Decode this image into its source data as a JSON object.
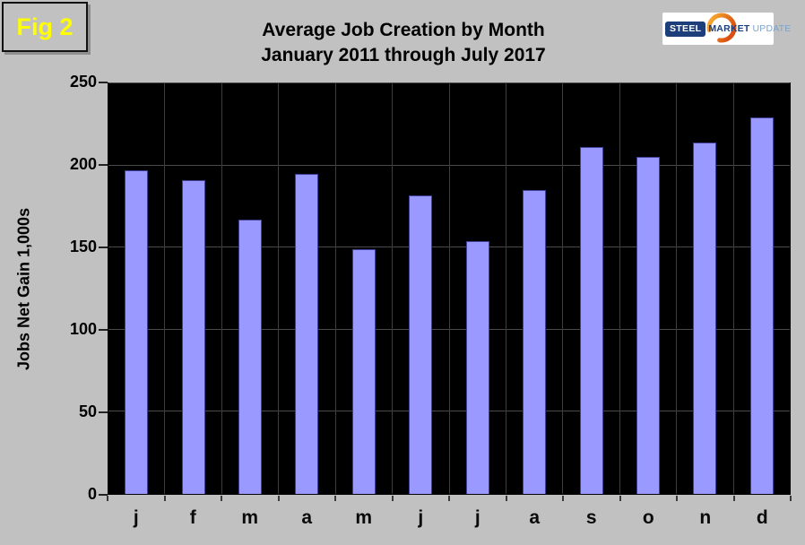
{
  "figure_label": "Fig 2",
  "title": {
    "line1": "Average Job Creation by Month",
    "line2": "January 2011 through July 2017"
  },
  "logo": {
    "steel": "STEEL",
    "market": "MARKET",
    "update": "UPDATE",
    "navy": "#1c3e7b",
    "light_blue": "#7ba3cc",
    "orange": "#e87722"
  },
  "chart_data": {
    "type": "bar",
    "title": "Average Job Creation by Month January 2011 through July 2017",
    "categories": [
      "j",
      "f",
      "m",
      "a",
      "m",
      "j",
      "j",
      "a",
      "s",
      "o",
      "n",
      "d"
    ],
    "values": [
      197,
      191,
      167,
      195,
      149,
      182,
      154,
      185,
      211,
      205,
      214,
      229
    ],
    "xlabel": "",
    "ylabel": "Jobs Net Gain 1,000s",
    "ylim": [
      0,
      250
    ],
    "yticks": [
      0,
      50,
      100,
      150,
      200,
      250
    ],
    "grid": true,
    "legend": "none",
    "plot_background": "#000000",
    "page_background": "#c1c1c1",
    "bar_color": "#9999ff",
    "bar_border_color": "#404099",
    "gridline_color": "#4a4a4a",
    "figure_label_color": "#ffff00"
  }
}
